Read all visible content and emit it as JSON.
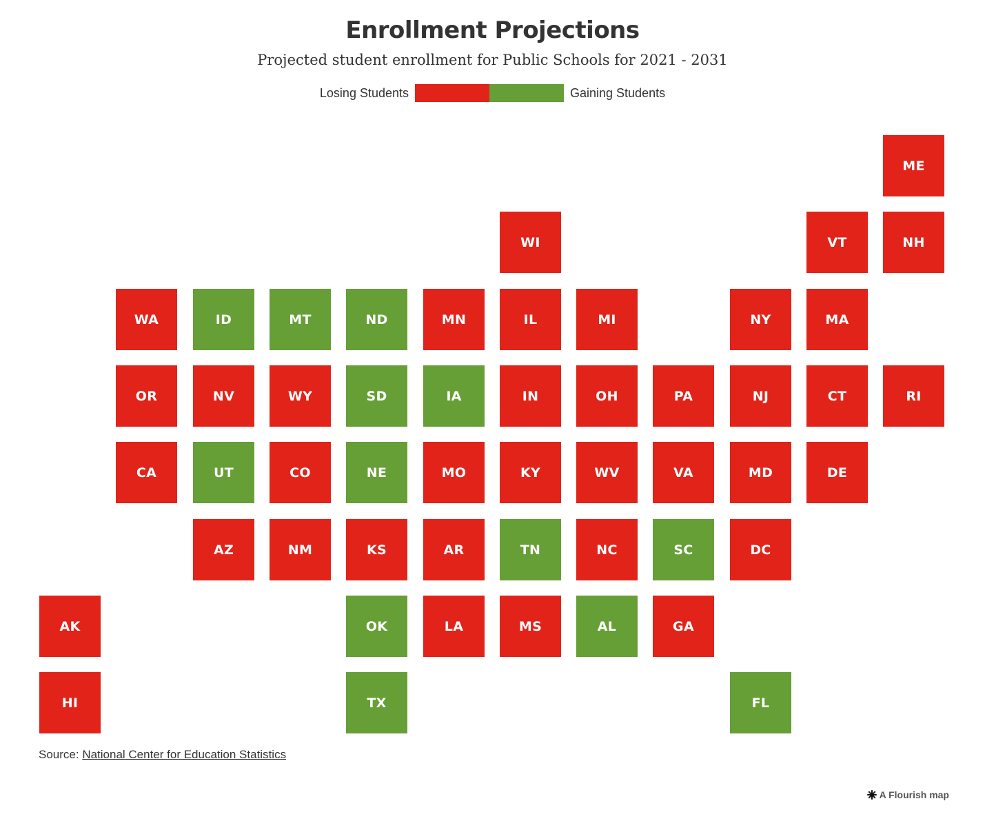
{
  "title": "Enrollment Projections",
  "subtitle": "Projected student enrollment for Public Schools for 2021 - 2031",
  "legend": {
    "losing_label": "Losing Students",
    "gaining_label": "Gaining Students",
    "losing_color": "#e2231a",
    "gaining_color": "#659f36"
  },
  "source": {
    "prefix": "Source: ",
    "link_text": "National Center for Education Statistics"
  },
  "credit": {
    "icon": "flourish-asterisk-icon",
    "text": "A Flourish map"
  },
  "map_data": {
    "type": "tile-grid",
    "states": [
      {
        "abbr": "ME",
        "status": "losing",
        "col": 11,
        "row": 0
      },
      {
        "abbr": "WI",
        "status": "losing",
        "col": 6,
        "row": 1
      },
      {
        "abbr": "VT",
        "status": "losing",
        "col": 10,
        "row": 1
      },
      {
        "abbr": "NH",
        "status": "losing",
        "col": 11,
        "row": 1
      },
      {
        "abbr": "WA",
        "status": "losing",
        "col": 1,
        "row": 2
      },
      {
        "abbr": "ID",
        "status": "gaining",
        "col": 2,
        "row": 2
      },
      {
        "abbr": "MT",
        "status": "gaining",
        "col": 3,
        "row": 2
      },
      {
        "abbr": "ND",
        "status": "gaining",
        "col": 4,
        "row": 2
      },
      {
        "abbr": "MN",
        "status": "losing",
        "col": 5,
        "row": 2
      },
      {
        "abbr": "IL",
        "status": "losing",
        "col": 6,
        "row": 2
      },
      {
        "abbr": "MI",
        "status": "losing",
        "col": 7,
        "row": 2
      },
      {
        "abbr": "NY",
        "status": "losing",
        "col": 9,
        "row": 2
      },
      {
        "abbr": "MA",
        "status": "losing",
        "col": 10,
        "row": 2
      },
      {
        "abbr": "OR",
        "status": "losing",
        "col": 1,
        "row": 3
      },
      {
        "abbr": "NV",
        "status": "losing",
        "col": 2,
        "row": 3
      },
      {
        "abbr": "WY",
        "status": "losing",
        "col": 3,
        "row": 3
      },
      {
        "abbr": "SD",
        "status": "gaining",
        "col": 4,
        "row": 3
      },
      {
        "abbr": "IA",
        "status": "gaining",
        "col": 5,
        "row": 3
      },
      {
        "abbr": "IN",
        "status": "losing",
        "col": 6,
        "row": 3
      },
      {
        "abbr": "OH",
        "status": "losing",
        "col": 7,
        "row": 3
      },
      {
        "abbr": "PA",
        "status": "losing",
        "col": 8,
        "row": 3
      },
      {
        "abbr": "NJ",
        "status": "losing",
        "col": 9,
        "row": 3
      },
      {
        "abbr": "CT",
        "status": "losing",
        "col": 10,
        "row": 3
      },
      {
        "abbr": "RI",
        "status": "losing",
        "col": 11,
        "row": 3
      },
      {
        "abbr": "CA",
        "status": "losing",
        "col": 1,
        "row": 4
      },
      {
        "abbr": "UT",
        "status": "gaining",
        "col": 2,
        "row": 4
      },
      {
        "abbr": "CO",
        "status": "losing",
        "col": 3,
        "row": 4
      },
      {
        "abbr": "NE",
        "status": "gaining",
        "col": 4,
        "row": 4
      },
      {
        "abbr": "MO",
        "status": "losing",
        "col": 5,
        "row": 4
      },
      {
        "abbr": "KY",
        "status": "losing",
        "col": 6,
        "row": 4
      },
      {
        "abbr": "WV",
        "status": "losing",
        "col": 7,
        "row": 4
      },
      {
        "abbr": "VA",
        "status": "losing",
        "col": 8,
        "row": 4
      },
      {
        "abbr": "MD",
        "status": "losing",
        "col": 9,
        "row": 4
      },
      {
        "abbr": "DE",
        "status": "losing",
        "col": 10,
        "row": 4
      },
      {
        "abbr": "AZ",
        "status": "losing",
        "col": 2,
        "row": 5
      },
      {
        "abbr": "NM",
        "status": "losing",
        "col": 3,
        "row": 5
      },
      {
        "abbr": "KS",
        "status": "losing",
        "col": 4,
        "row": 5
      },
      {
        "abbr": "AR",
        "status": "losing",
        "col": 5,
        "row": 5
      },
      {
        "abbr": "TN",
        "status": "gaining",
        "col": 6,
        "row": 5
      },
      {
        "abbr": "NC",
        "status": "losing",
        "col": 7,
        "row": 5
      },
      {
        "abbr": "SC",
        "status": "gaining",
        "col": 8,
        "row": 5
      },
      {
        "abbr": "DC",
        "status": "losing",
        "col": 9,
        "row": 5
      },
      {
        "abbr": "AK",
        "status": "losing",
        "col": 0,
        "row": 6
      },
      {
        "abbr": "OK",
        "status": "gaining",
        "col": 4,
        "row": 6
      },
      {
        "abbr": "LA",
        "status": "losing",
        "col": 5,
        "row": 6
      },
      {
        "abbr": "MS",
        "status": "losing",
        "col": 6,
        "row": 6
      },
      {
        "abbr": "AL",
        "status": "gaining",
        "col": 7,
        "row": 6
      },
      {
        "abbr": "GA",
        "status": "losing",
        "col": 8,
        "row": 6
      },
      {
        "abbr": "HI",
        "status": "losing",
        "col": 0,
        "row": 7
      },
      {
        "abbr": "TX",
        "status": "gaining",
        "col": 4,
        "row": 7
      },
      {
        "abbr": "FL",
        "status": "gaining",
        "col": 9,
        "row": 7
      }
    ]
  }
}
